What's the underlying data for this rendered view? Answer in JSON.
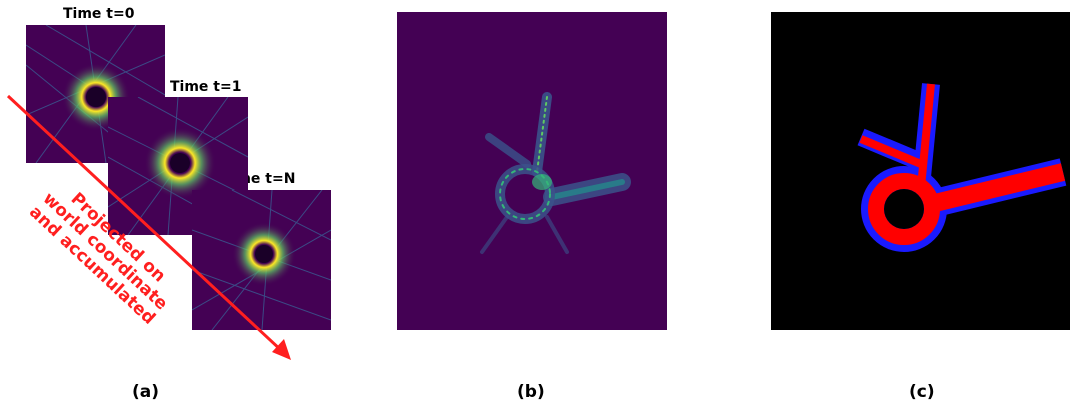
{
  "panel_a": {
    "time_labels": [
      "Time t=0",
      "Time t=1",
      "Time t=N"
    ],
    "arrow_text": [
      "Projected on",
      "world coordinate",
      "and accumulated"
    ],
    "caption": "(a)"
  },
  "panel_b": {
    "caption": "(b)"
  },
  "panel_c": {
    "caption": "(c)"
  },
  "colors": {
    "viridis_dark": "#440154",
    "viridis_yellow": "#fde725",
    "viridis_teal": "#35b779",
    "arrow_red": "#ff1f1f",
    "mask_red": "#ff0000",
    "mask_blue": "#1a1aff"
  }
}
